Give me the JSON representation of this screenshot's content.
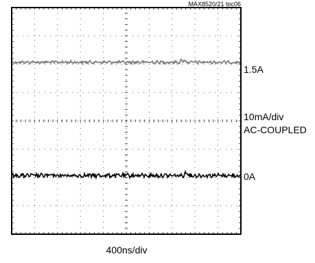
{
  "figure_id": "MAX8520/21 toc06",
  "chart_data": {
    "type": "line",
    "x_divisions": 10,
    "y_divisions": 8,
    "series": [
      {
        "name": "",
        "level_div": 1.93,
        "noise_div": 0.045,
        "color": "#777777"
      },
      {
        "name": "",
        "level_div": 5.93,
        "noise_div": 0.06,
        "color": "#000000"
      }
    ],
    "grid": true,
    "markers": {
      "upper": "1.5A",
      "lower": "0A"
    },
    "scale_vertical": "10mA/div",
    "coupling": "AC-COUPLED",
    "scale_horizontal": "400ns/div"
  }
}
